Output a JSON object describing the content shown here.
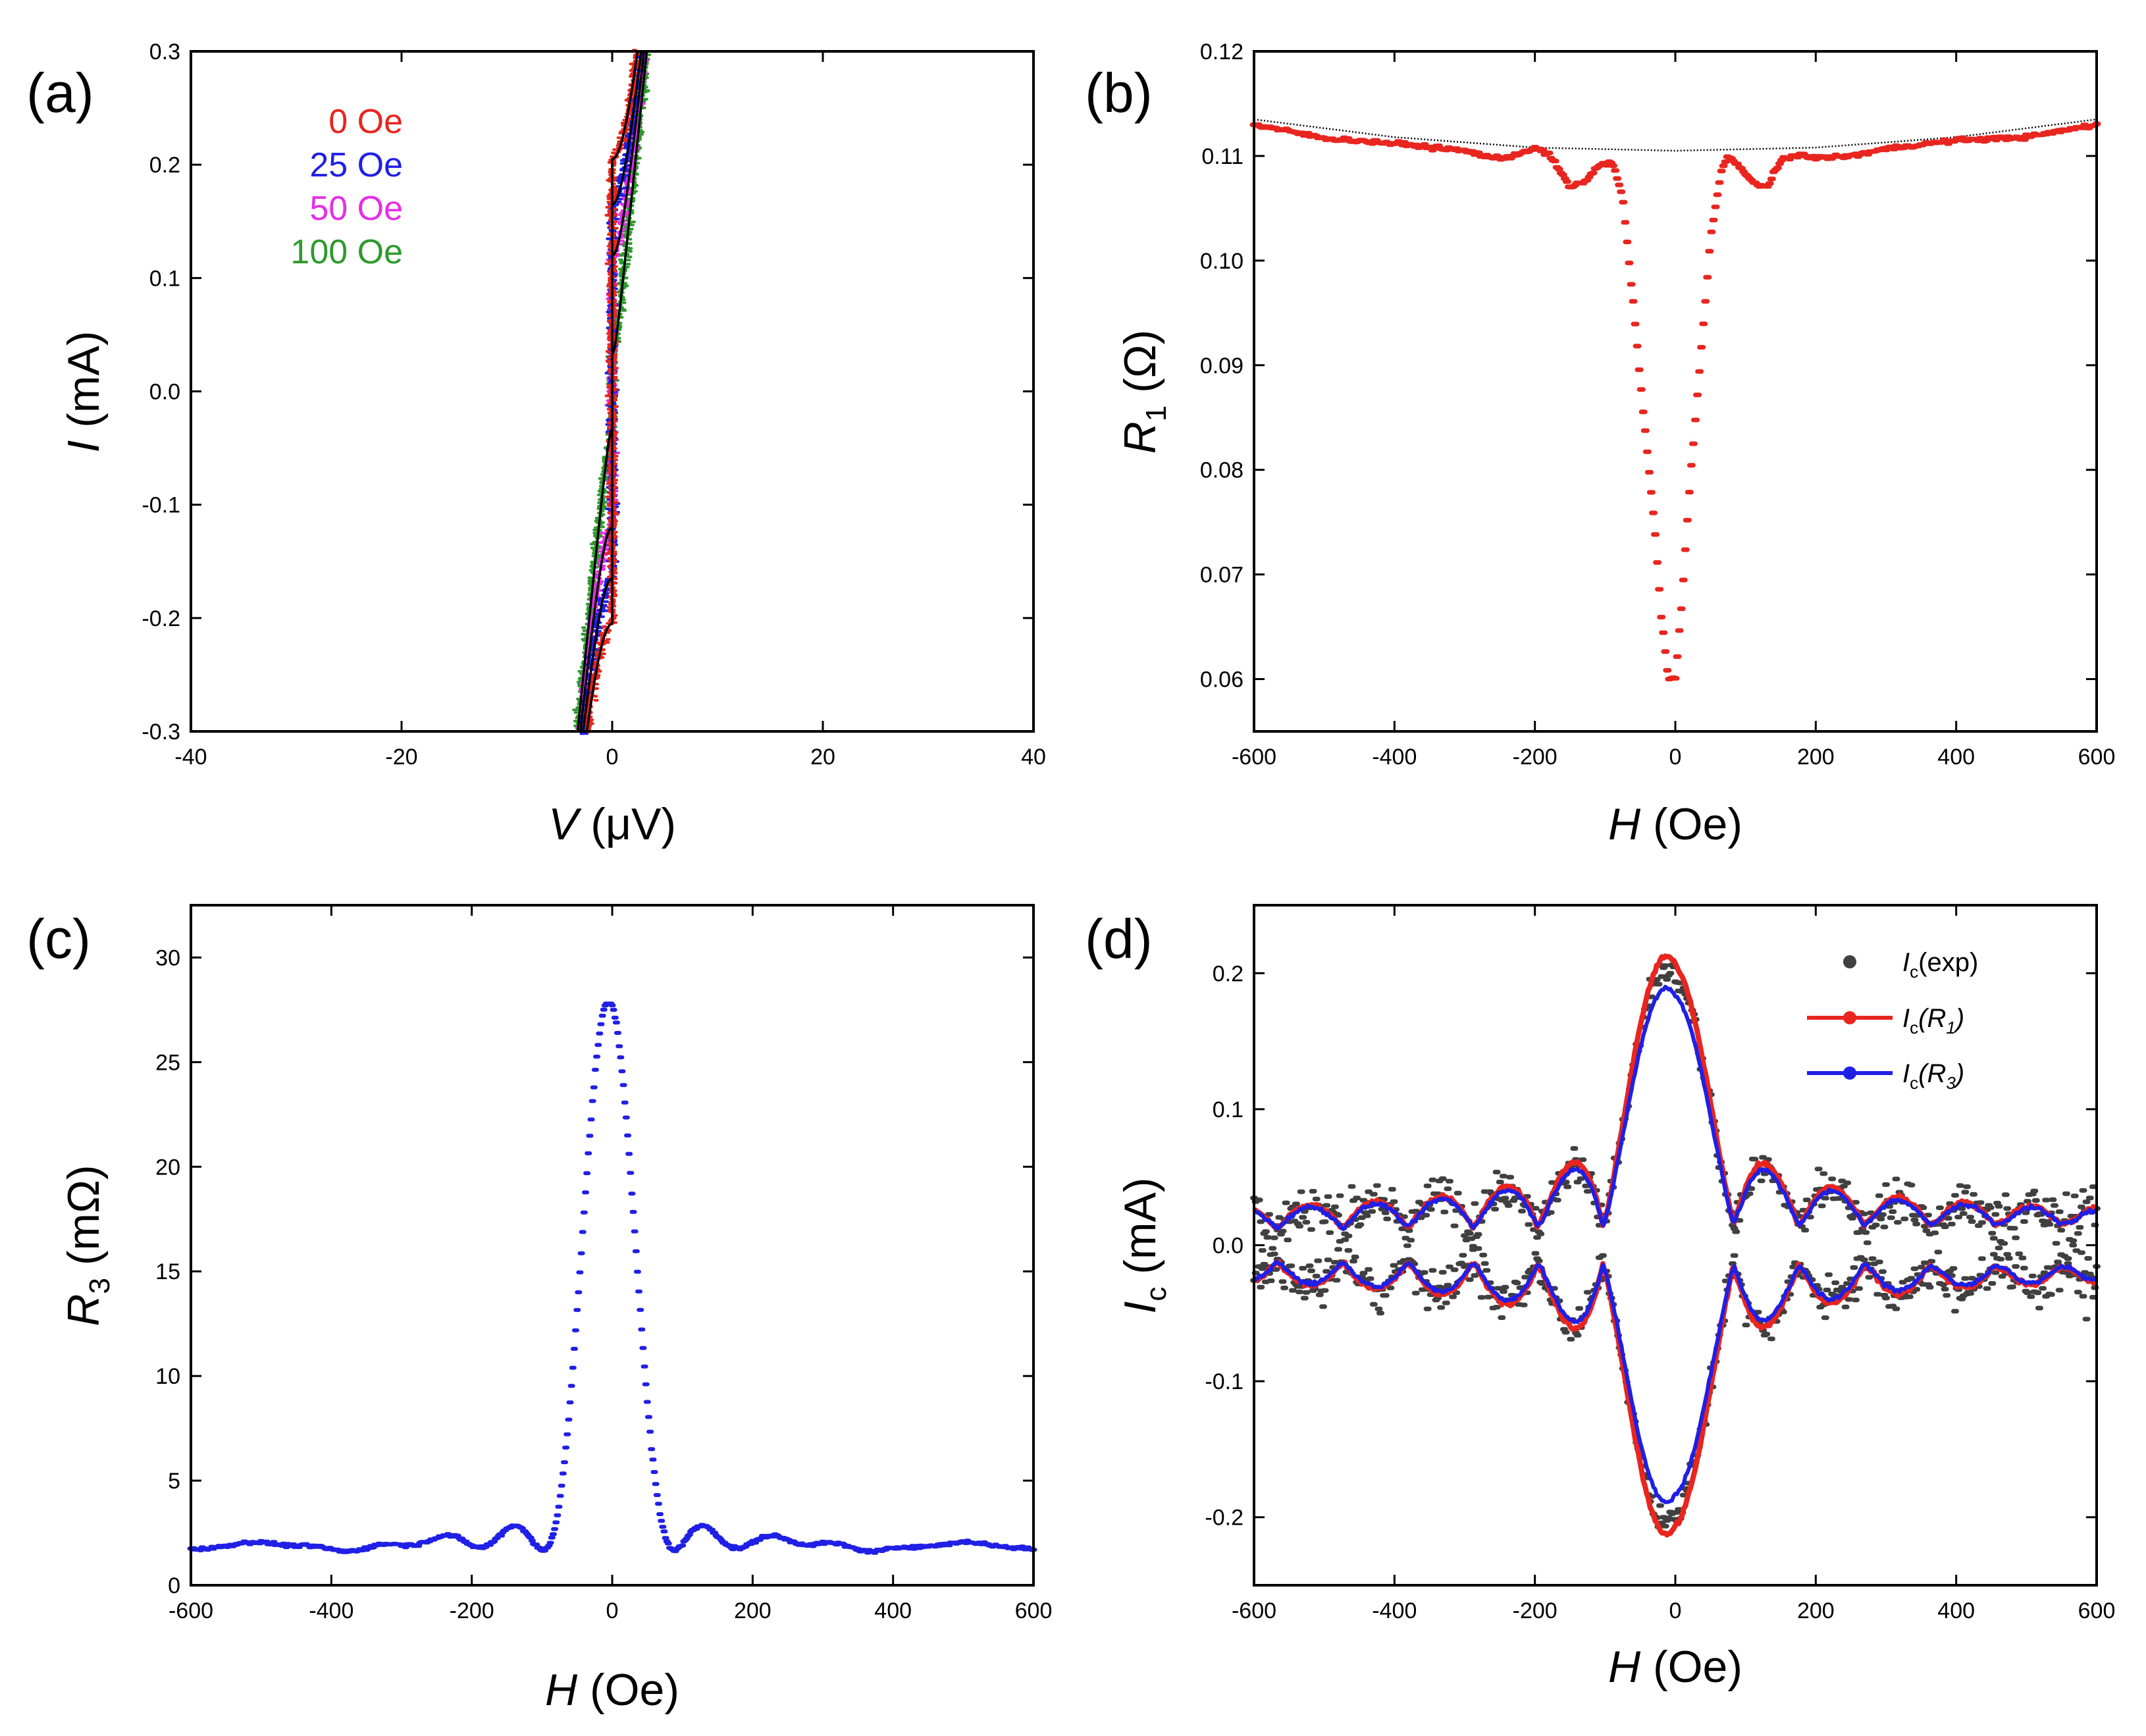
{
  "chart_data": [
    {
      "panel": "(a)",
      "type": "scatter",
      "title": "",
      "xlabel": "V (μV)",
      "ylabel": "I (mA)",
      "xlim": [
        -40,
        40
      ],
      "ylim": [
        -0.3,
        0.3
      ],
      "xticks": [
        "-40",
        "-20",
        "0",
        "20",
        "40"
      ],
      "yticks": [
        "-0.3",
        "-0.2",
        "-0.1",
        "0.0",
        "0.1",
        "0.2",
        "0.3"
      ],
      "legend_position": "top-left",
      "series": [
        {
          "name": "0 Oe",
          "color": "#e8251e",
          "Ic": 0.205,
          "R": 0.011
        },
        {
          "name": "25 Oe",
          "color": "#1f1fe6",
          "Ic": 0.165,
          "R": 0.011
        },
        {
          "name": "50 Oe",
          "color": "#e62ee6",
          "Ic": 0.12,
          "R": 0.011
        },
        {
          "name": "100 Oe",
          "color": "#2e9a2e",
          "Ic": 0.033,
          "R": 0.011
        }
      ],
      "fit_color": "#000000"
    },
    {
      "panel": "(b)",
      "type": "scatter",
      "title": "",
      "xlabel": "H (Oe)",
      "ylabel": "R1 (Ω)",
      "xlim": [
        -600,
        600
      ],
      "ylim": [
        0.055,
        0.12
      ],
      "xticks": [
        "-600",
        "-400",
        "-200",
        "0",
        "200",
        "400",
        "600"
      ],
      "yticks": [
        "0.06",
        "0.07",
        "0.08",
        "0.09",
        "0.10",
        "0.11",
        "0.12"
      ],
      "series": [
        {
          "name": "R1",
          "color": "#e8251e",
          "x": [
            -600,
            -500,
            -400,
            -300,
            -250,
            -200,
            -180,
            -150,
            -130,
            -110,
            -90,
            -75,
            -60,
            -45,
            -30,
            -20,
            -10,
            0,
            10,
            20,
            35,
            50,
            65,
            75,
            90,
            110,
            130,
            150,
            180,
            200,
            250,
            300,
            400,
            500,
            600
          ],
          "y": [
            0.113,
            0.1117,
            0.1112,
            0.1105,
            0.1097,
            0.1107,
            0.1102,
            0.107,
            0.1075,
            0.109,
            0.1095,
            0.106,
            0.096,
            0.085,
            0.075,
            0.066,
            0.06,
            0.06,
            0.068,
            0.078,
            0.09,
            0.102,
            0.1085,
            0.11,
            0.109,
            0.1075,
            0.107,
            0.1095,
            0.1102,
            0.1098,
            0.11,
            0.1107,
            0.1115,
            0.1118,
            0.113
          ]
        },
        {
          "name": "baseline",
          "color": "#000000",
          "x": [
            -600,
            -400,
            -200,
            0,
            200,
            400,
            600
          ],
          "y": [
            0.1135,
            0.1118,
            0.1108,
            0.1105,
            0.1108,
            0.1118,
            0.1135
          ]
        }
      ]
    },
    {
      "panel": "(c)",
      "type": "scatter",
      "title": "",
      "xlabel": "H (Oe)",
      "ylabel": "R3 (mΩ)",
      "xlim": [
        -600,
        600
      ],
      "ylim": [
        0,
        32.5
      ],
      "xticks": [
        "-600",
        "-400",
        "-200",
        "0",
        "200",
        "400",
        "600"
      ],
      "yticks": [
        "0",
        "5",
        "10",
        "15",
        "20",
        "25",
        "30"
      ],
      "series": [
        {
          "name": "R3",
          "color": "#1f1fe6",
          "peak": 27.8,
          "center": -5
        }
      ]
    },
    {
      "panel": "(d)",
      "type": "line",
      "title": "",
      "xlabel": "H (Oe)",
      "ylabel": "Ic (mA)",
      "xlim": [
        -600,
        600
      ],
      "ylim": [
        -0.25,
        0.25
      ],
      "xticks": [
        "-600",
        "-400",
        "-200",
        "0",
        "200",
        "400",
        "600"
      ],
      "yticks": [
        "-0.2",
        "-0.1",
        "0.0",
        "0.1",
        "0.2"
      ],
      "legend_position": "top-right",
      "series": [
        {
          "name": "Ic(exp)",
          "color": "#404040",
          "peak": 0.2
        },
        {
          "name": "Ic(R1)",
          "color": "#e8251e",
          "peak": 0.21
        },
        {
          "name": "Ic(R3)",
          "color": "#1f1fe6",
          "peak": 0.187
        }
      ]
    }
  ],
  "labels": {
    "a": "(a)",
    "b": "(b)",
    "c": "(c)",
    "d": "(d)",
    "a_legend": [
      "0 Oe",
      "25 Oe",
      "50 Oe",
      "100 Oe"
    ],
    "a_x_sym": "V",
    "a_x_unit": "(μV)",
    "a_y_sym": "I",
    "a_y_unit": "(mA)",
    "b_x_sym": "H",
    "b_x_unit": "(Oe)",
    "b_y_sym": "R",
    "b_y_sub": "1",
    "b_y_unit": "(Ω)",
    "c_x_sym": "H",
    "c_x_unit": "(Oe)",
    "c_y_sym": "R",
    "c_y_sub": "3",
    "c_y_unit": "(mΩ)",
    "d_x_sym": "H",
    "d_x_unit": "(Oe)",
    "d_y_sym": "I",
    "d_y_sub": "c",
    "d_y_unit": "(mA)",
    "d_leg": [
      {
        "sym": "I",
        "sub": "c",
        "rest": "(exp)"
      },
      {
        "sym": "I",
        "sub": "c",
        "rest": "(R",
        "rest_sub": "1",
        "close": ")"
      },
      {
        "sym": "I",
        "sub": "c",
        "rest": "(R",
        "rest_sub": "3",
        "close": ")"
      }
    ]
  }
}
